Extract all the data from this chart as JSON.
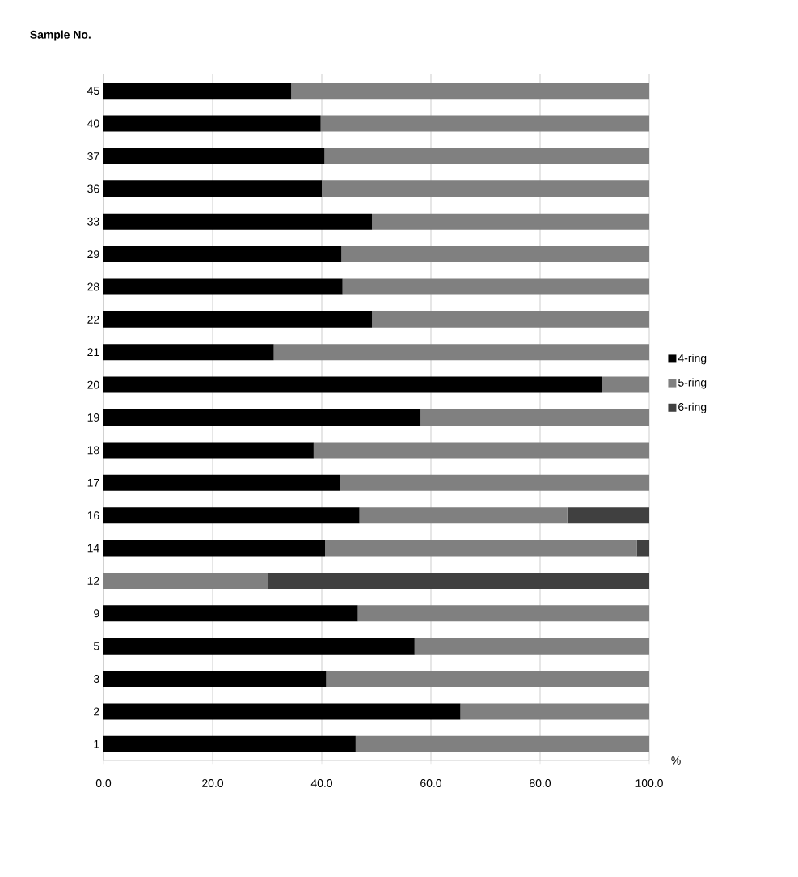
{
  "chart_data": {
    "type": "bar",
    "orientation": "horizontal",
    "stacked": true,
    "xlabel": "%",
    "ylabel": "Sample No.",
    "categories": [
      "45",
      "40",
      "37",
      "36",
      "33",
      "29",
      "28",
      "22",
      "21",
      "20",
      "19",
      "18",
      "17",
      "16",
      "14",
      "12",
      "9",
      "5",
      "3",
      "2",
      "1"
    ],
    "series": [
      {
        "name": "4-ring",
        "color": "#000000",
        "values": [
          34.4,
          39.8,
          40.5,
          40.0,
          49.2,
          43.6,
          43.8,
          49.2,
          31.2,
          91.4,
          58.1,
          38.5,
          43.4,
          46.9,
          40.6,
          0,
          46.6,
          57.0,
          40.8,
          65.4,
          46.2
        ]
      },
      {
        "name": "5-ring",
        "color": "#808080",
        "values": [
          65.6,
          60.2,
          59.5,
          60.0,
          50.8,
          56.4,
          56.2,
          50.8,
          68.8,
          8.6,
          41.9,
          61.5,
          56.6,
          38.1,
          57.1,
          30.2,
          53.4,
          43.0,
          59.2,
          34.6,
          53.8
        ]
      },
      {
        "name": "6-ring",
        "color": "#404040",
        "values": [
          0,
          0,
          0,
          0,
          0,
          0,
          0,
          0,
          0,
          0,
          0,
          0,
          0,
          15.0,
          2.3,
          69.8,
          0,
          0,
          0,
          0,
          0
        ]
      }
    ],
    "xlim": [
      0,
      100
    ],
    "xticks": [
      {
        "value": 0,
        "label": "0.0"
      },
      {
        "value": 20,
        "label": "20.0"
      },
      {
        "value": 40,
        "label": "40.0"
      },
      {
        "value": 60,
        "label": "60.0"
      },
      {
        "value": 80,
        "label": "80.0"
      },
      {
        "value": 100,
        "label": "100.0"
      }
    ],
    "grid": "x",
    "legend": "right"
  }
}
